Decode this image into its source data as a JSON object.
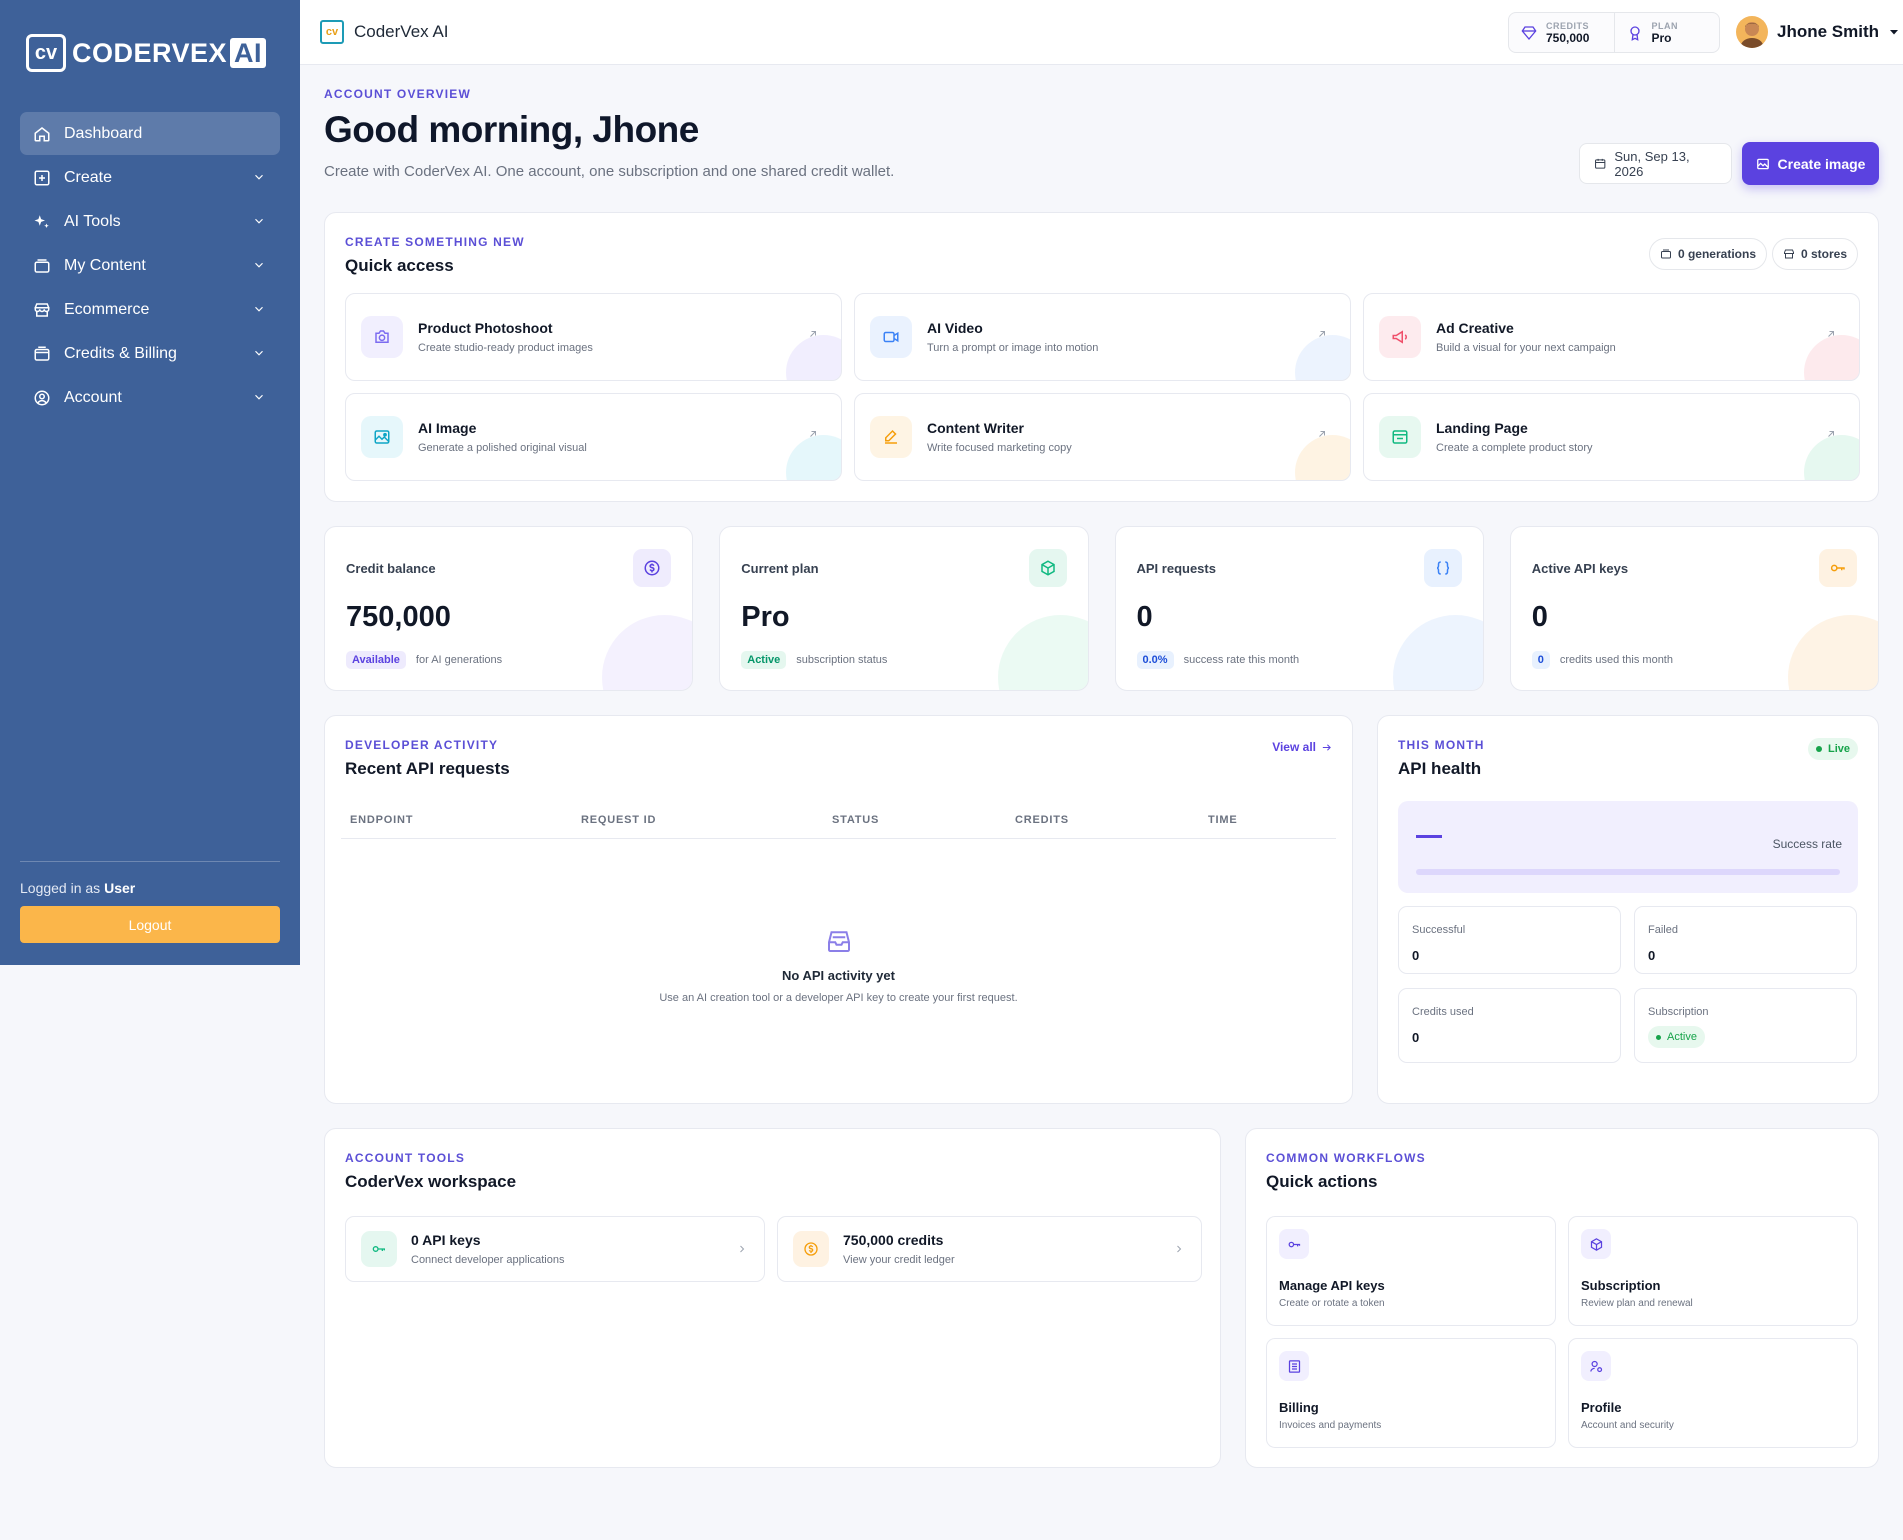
{
  "sidebar": {
    "logo_text": "CODERVEX",
    "logo_ai": "AI",
    "logo_mark": "cv",
    "items": [
      {
        "label": "Dashboard",
        "icon": "home-icon"
      },
      {
        "label": "Create",
        "icon": "plus-square-icon"
      },
      {
        "label": "AI Tools",
        "icon": "sparkles-icon"
      },
      {
        "label": "My Content",
        "icon": "folder-icon"
      },
      {
        "label": "Ecommerce",
        "icon": "store-icon"
      },
      {
        "label": "Credits & Billing",
        "icon": "credit-card-icon"
      },
      {
        "label": "Account",
        "icon": "user-circle-icon"
      }
    ],
    "logged_prefix": "Logged in as",
    "logged_role": "User",
    "logout_label": "Logout"
  },
  "topbar": {
    "brand": "CoderVex AI",
    "credits_label": "CREDITS",
    "credits_value": "750,000",
    "plan_label": "PLAN",
    "plan_value": "Pro",
    "user_name": "Jhone Smith"
  },
  "header": {
    "eyebrow": "ACCOUNT OVERVIEW",
    "title": "Good morning, Jhone",
    "subtitle": "Create with CoderVex AI. One account, one subscription and one shared credit wallet.",
    "date": "Sun, Sep 13, 2026",
    "create_label": "Create image"
  },
  "quick": {
    "eyebrow": "CREATE SOMETHING NEW",
    "title": "Quick access",
    "chip_generations": "0 generations",
    "chip_stores": "0 stores",
    "tiles": [
      {
        "title": "Product Photoshoot",
        "sub": "Create studio-ready product images",
        "color": "#7c6cf0",
        "bg": "#f1effe"
      },
      {
        "title": "AI Video",
        "sub": "Turn a prompt or image into motion",
        "color": "#3b82f6",
        "bg": "#eaf2fe"
      },
      {
        "title": "Ad Creative",
        "sub": "Build a visual for your next campaign",
        "color": "#ef4f6a",
        "bg": "#fdebee"
      },
      {
        "title": "AI Image",
        "sub": "Generate a polished original visual",
        "color": "#0ea5c6",
        "bg": "#e6f7fb"
      },
      {
        "title": "Content Writer",
        "sub": "Write focused marketing copy",
        "color": "#f59e0b",
        "bg": "#fef4e4"
      },
      {
        "title": "Landing Page",
        "sub": "Create a complete product story",
        "color": "#10b981",
        "bg": "#e7f8f0"
      }
    ]
  },
  "stats": [
    {
      "label": "Credit balance",
      "value": "750,000",
      "badge": "Available",
      "foot": "for AI generations",
      "color": "#5b42e0",
      "bg": "#efecfd",
      "badge_bg": "#eeebfd"
    },
    {
      "label": "Current plan",
      "value": "Pro",
      "badge": "Active",
      "foot": "subscription status",
      "color": "#10b981",
      "bg": "#e5f7f0",
      "badge_bg": "#e5f7ef"
    },
    {
      "label": "API requests",
      "value": "0",
      "badge": "0.0%",
      "foot": "success rate this month",
      "color": "#3b82f6",
      "bg": "#e8f1fe",
      "badge_bg": "#e8f1fe"
    },
    {
      "label": "Active API keys",
      "value": "0",
      "badge": "0",
      "foot": "credits used this month",
      "color": "#f59e0b",
      "bg": "#fef2e2",
      "badge_bg": "#e8f1fe"
    }
  ],
  "dev": {
    "eyebrow": "DEVELOPER ACTIVITY",
    "title": "Recent API requests",
    "view_all": "View all",
    "columns": [
      "ENDPOINT",
      "REQUEST ID",
      "STATUS",
      "CREDITS",
      "TIME"
    ],
    "empty_title": "No API activity yet",
    "empty_sub": "Use an AI creation tool or a developer API key to create your first request."
  },
  "health": {
    "eyebrow": "THIS MONTH",
    "title": "API health",
    "live": "Live",
    "rate_label": "Success rate",
    "success_rate": 0,
    "successful_label": "Successful",
    "successful_value": "0",
    "failed_label": "Failed",
    "failed_value": "0",
    "credits_used_label": "Credits used",
    "credits_used_value": "0",
    "subscription_label": "Subscription",
    "subscription_value": "Active"
  },
  "tools": {
    "eyebrow": "ACCOUNT TOOLS",
    "title": "CoderVex workspace",
    "items": [
      {
        "title": "0 API keys",
        "sub": "Connect developer applications"
      },
      {
        "title": "750,000 credits",
        "sub": "View your credit ledger"
      }
    ]
  },
  "workflows": {
    "eyebrow": "COMMON WORKFLOWS",
    "title": "Quick actions",
    "items": [
      {
        "title": "Manage API keys",
        "sub": "Create or rotate a token"
      },
      {
        "title": "Subscription",
        "sub": "Review plan and renewal"
      },
      {
        "title": "Billing",
        "sub": "Invoices and payments"
      },
      {
        "title": "Profile",
        "sub": "Account and security"
      }
    ]
  }
}
